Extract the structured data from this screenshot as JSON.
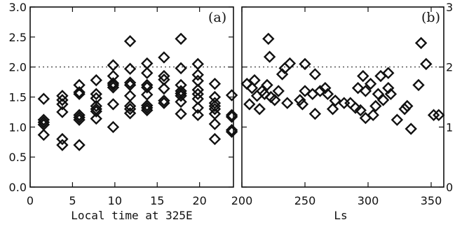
{
  "chart_data": [
    {
      "type": "scatter",
      "panel_label": "(a)",
      "xlabel": "Local time at 325E",
      "ylabel": "",
      "xlim": [
        0,
        24
      ],
      "ylim": [
        0,
        3
      ],
      "xticks": [
        0,
        5,
        10,
        15,
        20
      ],
      "yticks": [
        0.0,
        0.5,
        1.0,
        1.5,
        2.0,
        2.5,
        3.0
      ],
      "ytick_labels": [
        "0.0",
        "0.5",
        "1.0",
        "1.5",
        "2.0",
        "2.5",
        "3.0"
      ],
      "reference_line_y": 2.0,
      "marker": "open-diamond",
      "series": [
        {
          "points": [
            [
              1.6,
              1.47
            ],
            [
              1.6,
              1.12
            ],
            [
              1.6,
              1.08
            ],
            [
              1.6,
              1.04
            ],
            [
              1.6,
              0.87
            ],
            [
              3.8,
              1.52
            ],
            [
              3.8,
              1.45
            ],
            [
              3.8,
              1.38
            ],
            [
              3.8,
              1.25
            ],
            [
              3.8,
              0.8
            ],
            [
              3.8,
              0.7
            ],
            [
              5.8,
              1.7
            ],
            [
              5.8,
              1.58
            ],
            [
              5.8,
              1.55
            ],
            [
              5.8,
              1.2
            ],
            [
              5.8,
              1.16
            ],
            [
              5.8,
              1.12
            ],
            [
              5.8,
              0.7
            ],
            [
              7.8,
              1.78
            ],
            [
              7.8,
              1.55
            ],
            [
              7.8,
              1.48
            ],
            [
              7.8,
              1.35
            ],
            [
              7.8,
              1.3
            ],
            [
              7.8,
              1.26
            ],
            [
              7.8,
              1.14
            ],
            [
              9.8,
              2.03
            ],
            [
              9.8,
              1.85
            ],
            [
              9.8,
              1.73
            ],
            [
              9.8,
              1.7
            ],
            [
              9.8,
              1.66
            ],
            [
              9.8,
              1.38
            ],
            [
              9.8,
              1.0
            ],
            [
              11.8,
              2.43
            ],
            [
              11.8,
              1.97
            ],
            [
              11.8,
              1.74
            ],
            [
              11.8,
              1.7
            ],
            [
              11.8,
              1.52
            ],
            [
              11.8,
              1.35
            ],
            [
              11.8,
              1.3
            ],
            [
              11.8,
              1.23
            ],
            [
              13.8,
              2.06
            ],
            [
              13.8,
              1.9
            ],
            [
              13.8,
              1.7
            ],
            [
              13.8,
              1.66
            ],
            [
              13.8,
              1.54
            ],
            [
              13.8,
              1.36
            ],
            [
              13.8,
              1.32
            ],
            [
              13.8,
              1.28
            ],
            [
              15.8,
              2.16
            ],
            [
              15.8,
              1.85
            ],
            [
              15.8,
              1.79
            ],
            [
              15.8,
              1.64
            ],
            [
              15.8,
              1.44
            ],
            [
              15.8,
              1.4
            ],
            [
              17.8,
              2.47
            ],
            [
              17.8,
              1.98
            ],
            [
              17.8,
              1.7
            ],
            [
              17.8,
              1.6
            ],
            [
              17.8,
              1.56
            ],
            [
              17.8,
              1.52
            ],
            [
              17.8,
              1.42
            ],
            [
              17.8,
              1.22
            ],
            [
              19.8,
              2.05
            ],
            [
              19.8,
              1.87
            ],
            [
              19.8,
              1.77
            ],
            [
              19.8,
              1.62
            ],
            [
              19.8,
              1.55
            ],
            [
              19.8,
              1.47
            ],
            [
              19.8,
              1.32
            ],
            [
              19.8,
              1.2
            ],
            [
              21.8,
              1.72
            ],
            [
              21.8,
              1.5
            ],
            [
              21.8,
              1.4
            ],
            [
              21.8,
              1.35
            ],
            [
              21.8,
              1.3
            ],
            [
              21.8,
              1.22
            ],
            [
              21.8,
              1.05
            ],
            [
              21.8,
              0.8
            ],
            [
              23.8,
              1.53
            ],
            [
              23.8,
              1.2
            ],
            [
              23.8,
              1.17
            ],
            [
              23.8,
              0.95
            ],
            [
              23.8,
              0.92
            ]
          ]
        }
      ]
    },
    {
      "type": "scatter",
      "panel_label": "(b)",
      "xlabel": "Ls",
      "ylabel": "",
      "xlim": [
        200,
        360
      ],
      "ylim": [
        0,
        3
      ],
      "xticks": [
        200,
        250,
        300,
        350
      ],
      "yticks": [
        0,
        1,
        2,
        3
      ],
      "ytick_labels": [
        "0",
        "1",
        "2",
        "3"
      ],
      "yaxis_side": "right",
      "reference_line_y": 2.0,
      "marker": "open-diamond",
      "series": [
        {
          "points": [
            [
              204,
              1.72
            ],
            [
              206,
              1.38
            ],
            [
              208,
              1.65
            ],
            [
              210,
              1.78
            ],
            [
              212,
              1.52
            ],
            [
              214,
              1.3
            ],
            [
              216,
              1.6
            ],
            [
              218,
              1.55
            ],
            [
              220,
              1.7
            ],
            [
              221,
              2.47
            ],
            [
              222,
              2.17
            ],
            [
              223,
              1.5
            ],
            [
              226,
              1.45
            ],
            [
              229,
              1.6
            ],
            [
              232,
              1.88
            ],
            [
              234,
              1.98
            ],
            [
              236,
              1.4
            ],
            [
              238,
              2.06
            ],
            [
              246,
              1.45
            ],
            [
              248,
              1.38
            ],
            [
              250,
              1.6
            ],
            [
              250,
              2.05
            ],
            [
              256,
              1.55
            ],
            [
              258,
              1.22
            ],
            [
              258,
              1.88
            ],
            [
              262,
              1.6
            ],
            [
              266,
              1.65
            ],
            [
              268,
              1.55
            ],
            [
              272,
              1.3
            ],
            [
              274,
              1.44
            ],
            [
              281,
              1.4
            ],
            [
              286,
              1.4
            ],
            [
              290,
              1.32
            ],
            [
              292,
              1.65
            ],
            [
              294,
              1.28
            ],
            [
              296,
              1.85
            ],
            [
              298,
              1.15
            ],
            [
              298,
              1.6
            ],
            [
              302,
              1.72
            ],
            [
              304,
              1.2
            ],
            [
              306,
              1.35
            ],
            [
              308,
              1.55
            ],
            [
              310,
              1.85
            ],
            [
              312,
              1.45
            ],
            [
              316,
              1.9
            ],
            [
              316,
              1.65
            ],
            [
              318,
              1.55
            ],
            [
              323,
              1.12
            ],
            [
              329,
              1.3
            ],
            [
              331,
              1.35
            ],
            [
              334,
              0.97
            ],
            [
              340,
              1.7
            ],
            [
              342,
              2.4
            ],
            [
              346,
              2.05
            ],
            [
              352,
              1.2
            ],
            [
              356,
              1.2
            ]
          ]
        }
      ]
    }
  ]
}
